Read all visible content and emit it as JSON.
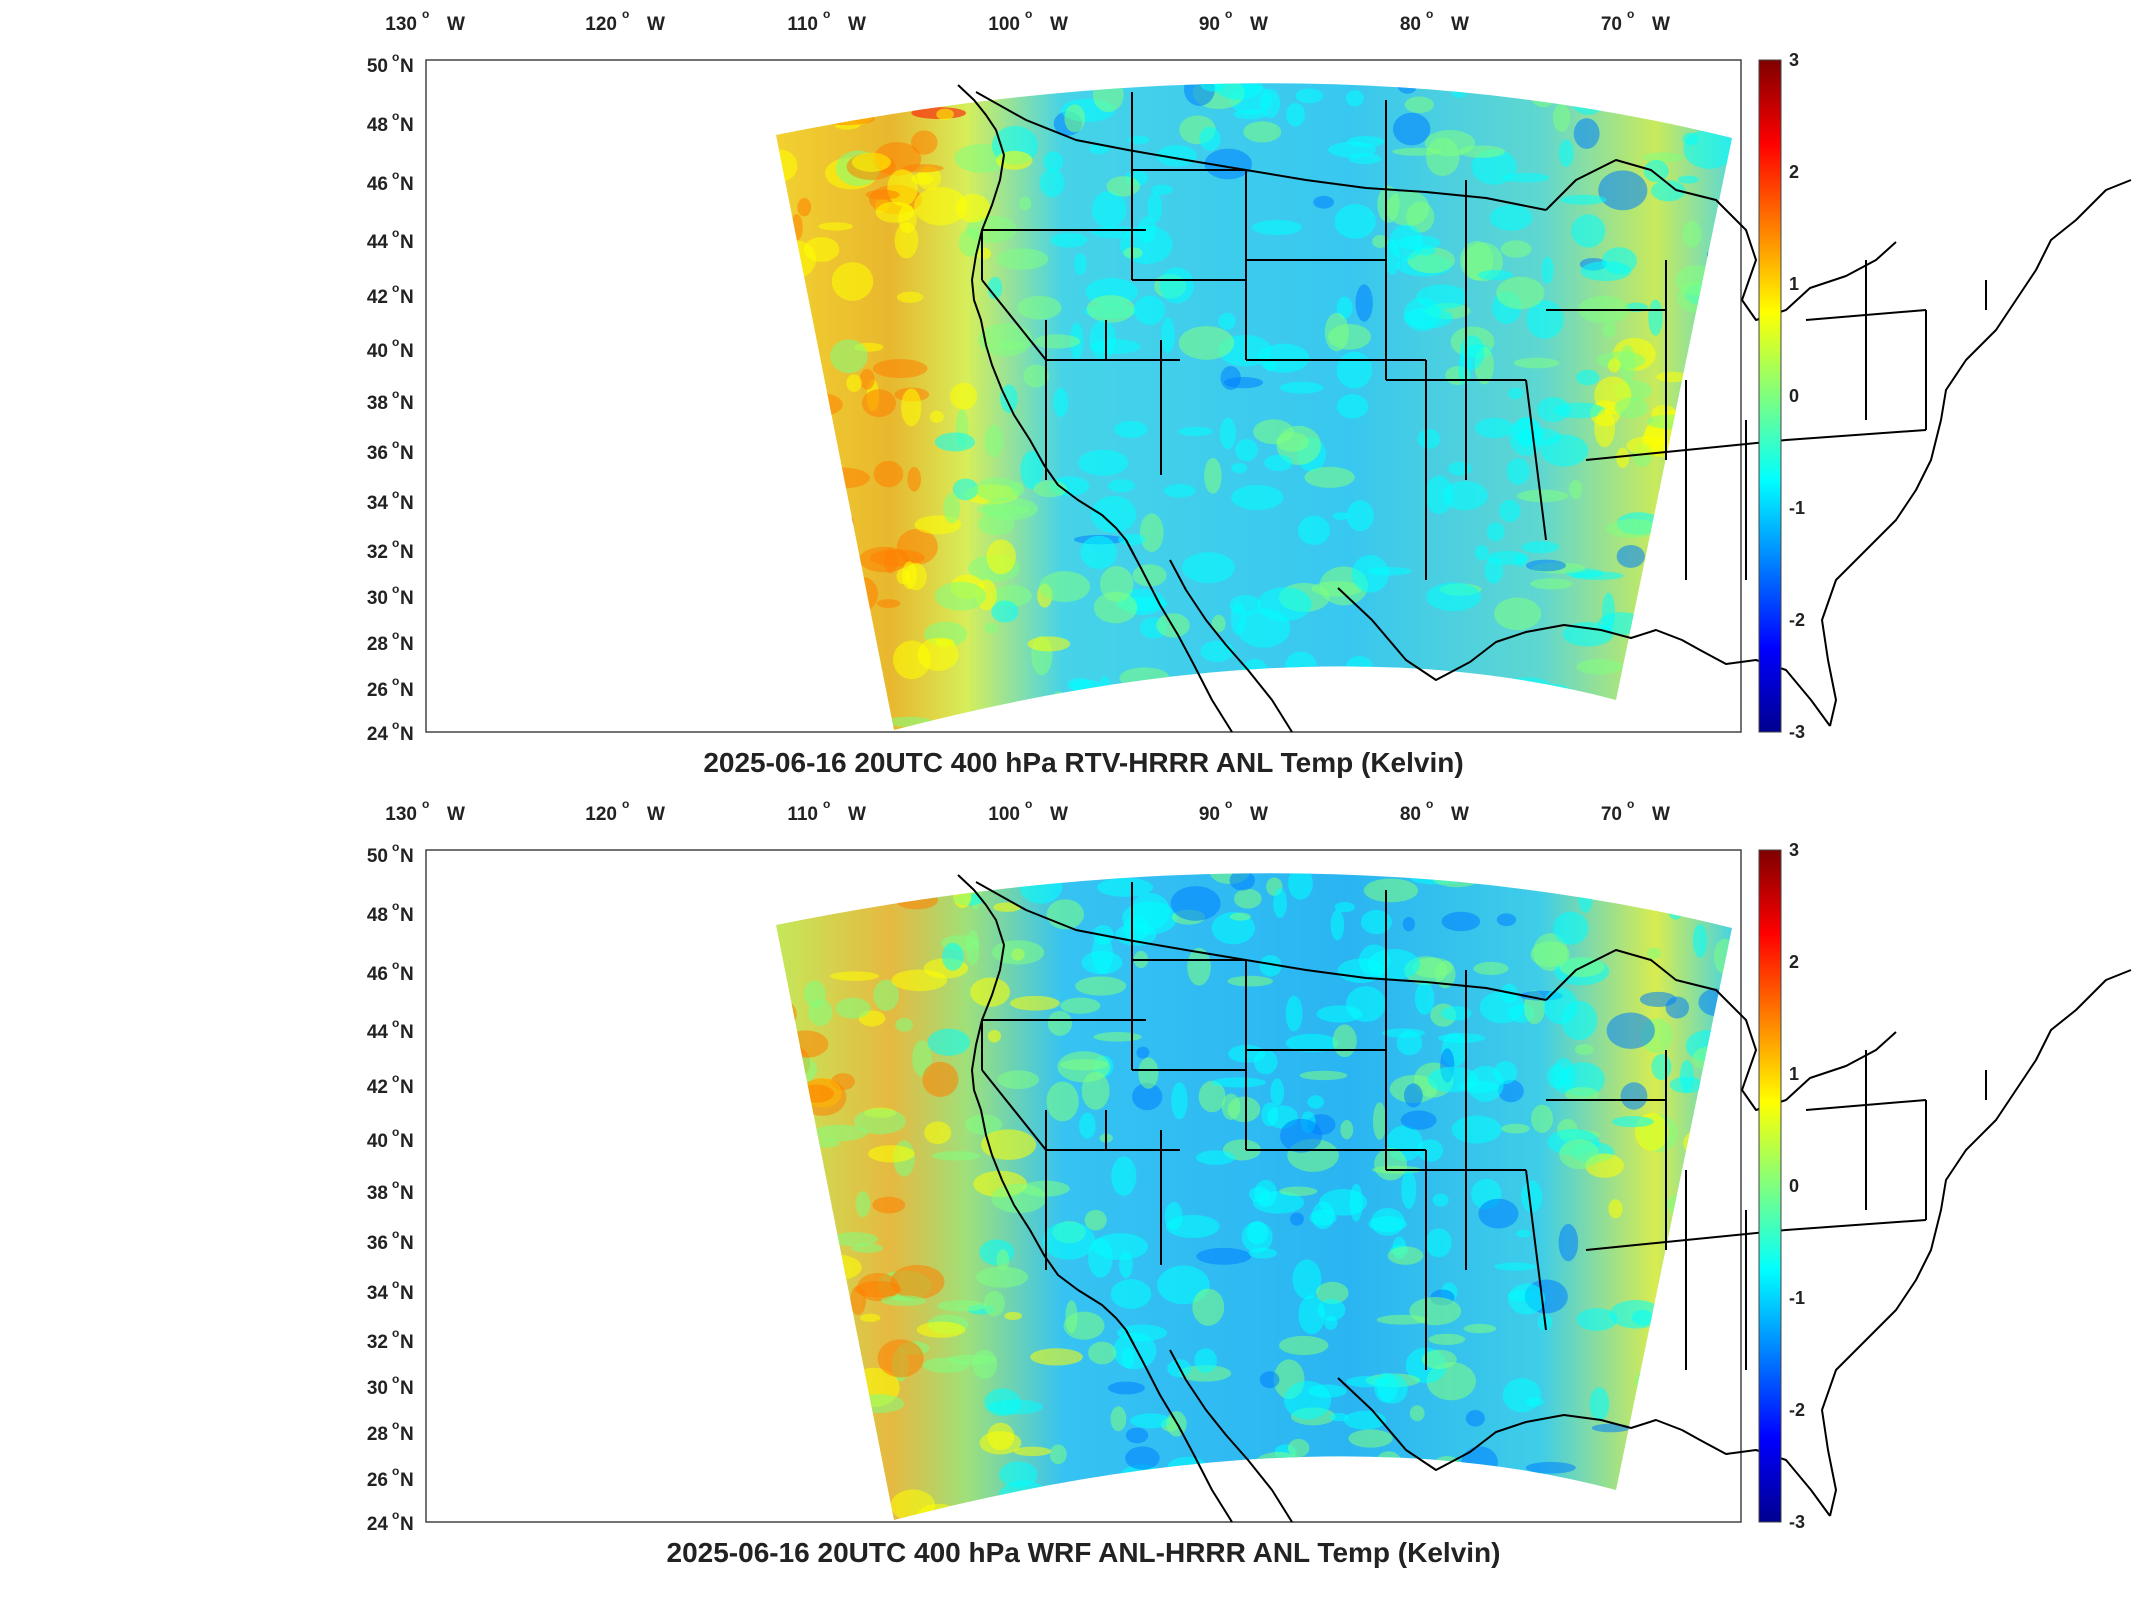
{
  "colors": {
    "field_cool": "#37c6f0",
    "field_warm": "#c9e85a",
    "colormap": [
      "#00008f",
      "#0000ff",
      "#007fff",
      "#00ffff",
      "#7fff7f",
      "#ffff00",
      "#ff7f00",
      "#ff0000",
      "#7f0000"
    ]
  },
  "axes": {
    "lon_ticks": [
      {
        "deg": "130",
        "hem": "W"
      },
      {
        "deg": "120",
        "hem": "W"
      },
      {
        "deg": "110",
        "hem": "W"
      },
      {
        "deg": "100",
        "hem": "W"
      },
      {
        "deg": "90",
        "hem": "W"
      },
      {
        "deg": "80",
        "hem": "W"
      },
      {
        "deg": "70",
        "hem": "W"
      }
    ],
    "lat_ticks": [
      {
        "deg": "50",
        "hem": "N"
      },
      {
        "deg": "48",
        "hem": "N"
      },
      {
        "deg": "46",
        "hem": "N"
      },
      {
        "deg": "44",
        "hem": "N"
      },
      {
        "deg": "42",
        "hem": "N"
      },
      {
        "deg": "40",
        "hem": "N"
      },
      {
        "deg": "38",
        "hem": "N"
      },
      {
        "deg": "36",
        "hem": "N"
      },
      {
        "deg": "34",
        "hem": "N"
      },
      {
        "deg": "32",
        "hem": "N"
      },
      {
        "deg": "30",
        "hem": "N"
      },
      {
        "deg": "28",
        "hem": "N"
      },
      {
        "deg": "26",
        "hem": "N"
      },
      {
        "deg": "24",
        "hem": "N"
      }
    ],
    "colorbar_ticks": [
      "3",
      "2",
      "1",
      "0",
      "-1",
      "-2",
      "-3"
    ]
  },
  "panels": [
    {
      "title": "2025-06-16 20UTC 400 hPa RTV-HRRR ANL Temp (Kelvin)",
      "variant": "rtv"
    },
    {
      "title": "2025-06-16 20UTC 400 hPa WRF ANL-HRRR ANL Temp (Kelvin)",
      "variant": "wrf"
    }
  ]
}
